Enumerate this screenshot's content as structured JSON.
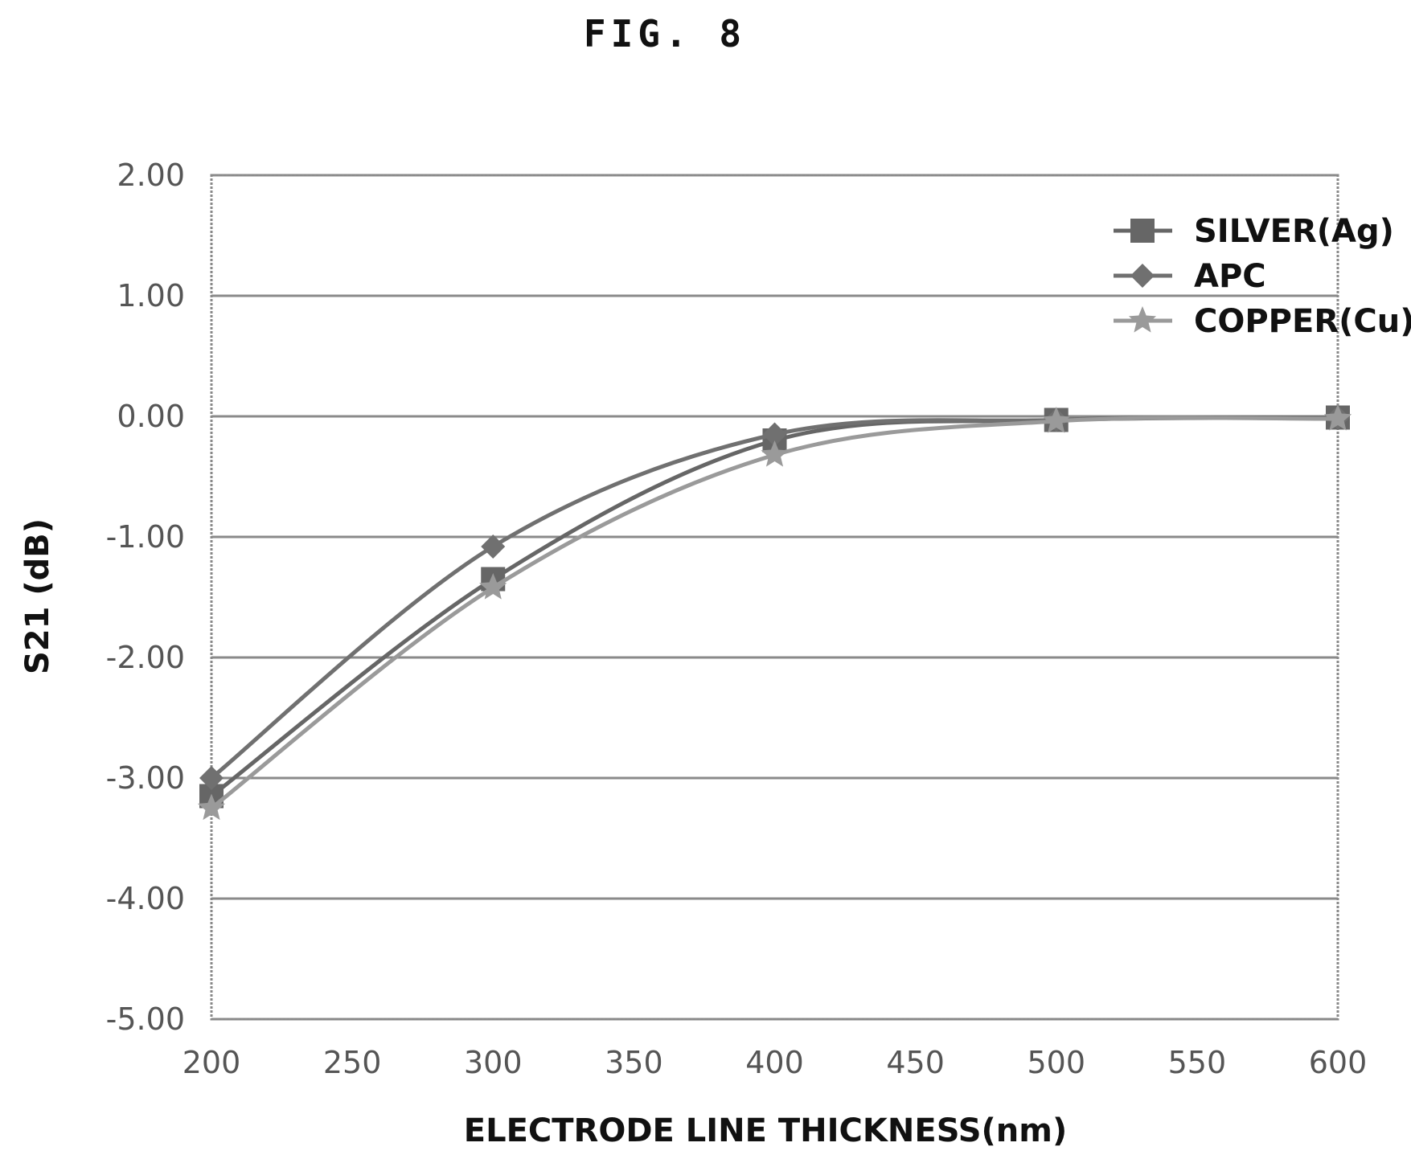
{
  "figure_label": "FIG. 8",
  "chart_data": {
    "type": "line",
    "title": "",
    "xlabel": "ELECTRODE LINE THICKNESS(nm)",
    "ylabel": "S21 (dB)",
    "xlim": [
      200,
      600
    ],
    "ylim": [
      -5.0,
      2.0
    ],
    "x_ticks": [
      "200",
      "250",
      "300",
      "350",
      "400",
      "450",
      "500",
      "550",
      "600"
    ],
    "y_ticks": [
      "2.00",
      "1.00",
      "0.00",
      "-1.00",
      "-2.00",
      "-3.00",
      "-4.00",
      "-5.00"
    ],
    "grid": "horizontal",
    "legend_position": "top-right",
    "x": [
      200,
      300,
      400,
      500,
      600
    ],
    "series": [
      {
        "name": "SILVER(Ag)",
        "marker": "square",
        "color": "#666666",
        "values": [
          -3.15,
          -1.35,
          -0.2,
          -0.03,
          -0.01
        ]
      },
      {
        "name": "APC",
        "marker": "diamond",
        "color": "#707070",
        "values": [
          -3.0,
          -1.08,
          -0.15,
          -0.03,
          -0.01
        ]
      },
      {
        "name": "COPPER(Cu)",
        "marker": "star",
        "color": "#9a9a9a",
        "values": [
          -3.25,
          -1.42,
          -0.32,
          -0.04,
          -0.02
        ]
      }
    ]
  }
}
